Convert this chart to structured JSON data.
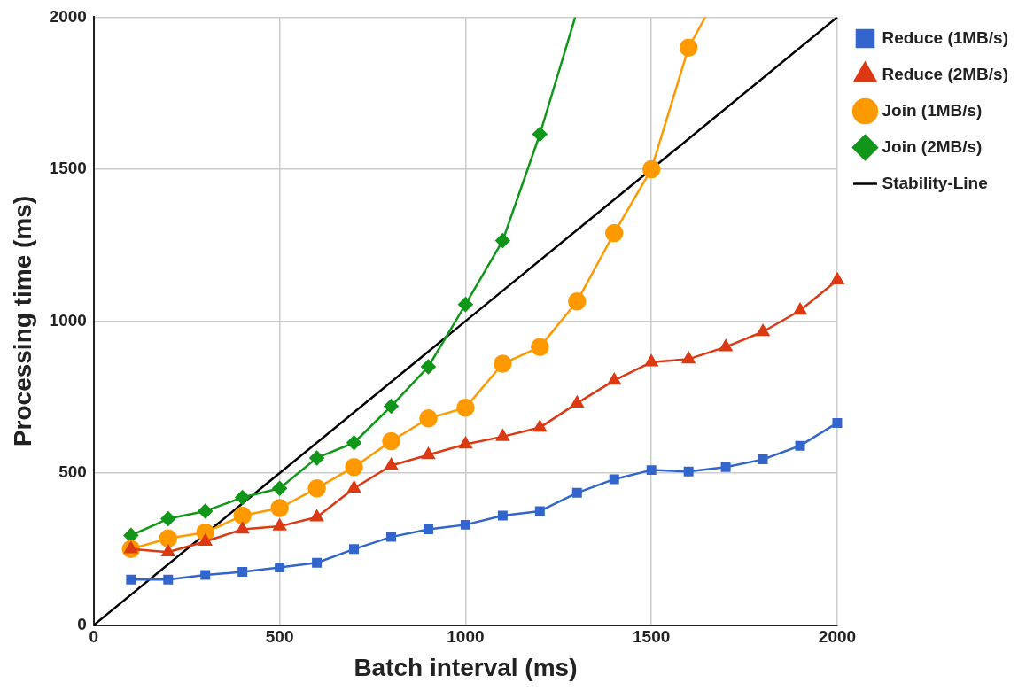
{
  "chart_data": {
    "type": "line",
    "xlabel": "Batch interval (ms)",
    "ylabel": "Processing time (ms)",
    "xlim": [
      0,
      2000
    ],
    "xticks": [
      0,
      500,
      1000,
      1500,
      2000
    ],
    "ylim": [
      0,
      2000
    ],
    "yticks": [
      0,
      500,
      1000,
      1500,
      2000
    ],
    "grid": true,
    "legend": "right",
    "series": [
      {
        "name": "Reduce (1MB/s)",
        "color": "#3366cc",
        "marker": "square",
        "x": [
          100,
          200,
          300,
          400,
          500,
          600,
          700,
          800,
          900,
          1000,
          1100,
          1200,
          1300,
          1400,
          1500,
          1600,
          1700,
          1800,
          1900,
          2000
        ],
        "values": [
          150,
          150,
          165,
          175,
          190,
          205,
          250,
          290,
          315,
          330,
          360,
          375,
          435,
          480,
          510,
          505,
          520,
          545,
          590,
          665
        ]
      },
      {
        "name": "Reduce (2MB/s)",
        "color": "#dc3912",
        "marker": "triangle",
        "x": [
          100,
          200,
          300,
          400,
          500,
          600,
          700,
          800,
          900,
          1000,
          1100,
          1200,
          1300,
          1400,
          1500,
          1600,
          1700,
          1800,
          1900,
          2000
        ],
        "values": [
          250,
          240,
          275,
          315,
          325,
          355,
          450,
          525,
          560,
          595,
          620,
          650,
          730,
          805,
          865,
          875,
          915,
          965,
          1035,
          1135
        ]
      },
      {
        "name": "Join (1MB/s)",
        "color": "#ff9900",
        "marker": "circle",
        "x": [
          100,
          200,
          300,
          400,
          500,
          600,
          700,
          800,
          900,
          1000,
          1100,
          1200,
          1300,
          1400,
          1500,
          1600,
          1645
        ],
        "values": [
          250,
          285,
          305,
          360,
          385,
          450,
          520,
          605,
          680,
          715,
          860,
          915,
          1065,
          1290,
          1500,
          1900,
          2000
        ]
      },
      {
        "name": "Join (2MB/s)",
        "color": "#109618",
        "marker": "diamond",
        "x": [
          100,
          200,
          300,
          400,
          500,
          600,
          700,
          800,
          900,
          1000,
          1100,
          1200,
          1295
        ],
        "values": [
          295,
          350,
          375,
          420,
          450,
          550,
          600,
          720,
          850,
          1055,
          1265,
          1615,
          2000
        ]
      },
      {
        "name": "Stability-Line",
        "color": "#000000",
        "marker": "none",
        "x": [
          0,
          2000
        ],
        "values": [
          0,
          2000
        ]
      }
    ]
  }
}
